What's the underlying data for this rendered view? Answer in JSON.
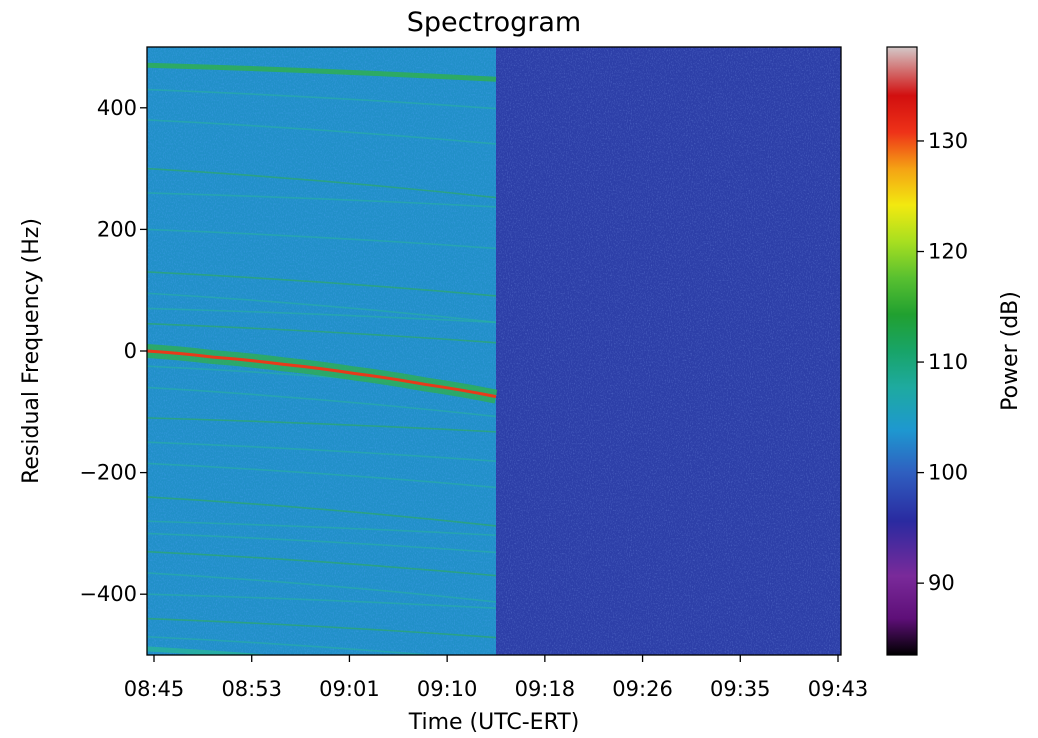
{
  "chart_data": {
    "type": "heatmap",
    "title": "Spectrogram",
    "xlabel": "Time (UTC-ERT)",
    "ylabel": "Residual Frequency (Hz)",
    "colorbar_label": "Power (dB)",
    "x_ticks": [
      "08:45",
      "08:53",
      "09:01",
      "09:10",
      "09:18",
      "09:26",
      "09:35",
      "09:43"
    ],
    "y_ticks": [
      -400,
      -200,
      0,
      200,
      400
    ],
    "ylim": [
      -500,
      500
    ],
    "colorbar_ticks": [
      90,
      100,
      110,
      120,
      130
    ],
    "colorbar_range": [
      83.5,
      138.5
    ],
    "colormap": "nipy_spectral",
    "signal_end_time": "09:14",
    "carrier": {
      "x": [
        "08:44",
        "08:50",
        "08:56",
        "09:02",
        "09:08",
        "09:14"
      ],
      "y": [
        0,
        -10,
        -22,
        -37,
        -55,
        -75
      ],
      "power_db": 130
    },
    "background_power_db": {
      "signal_on": 100,
      "signal_off": 94
    },
    "grid": false
  }
}
